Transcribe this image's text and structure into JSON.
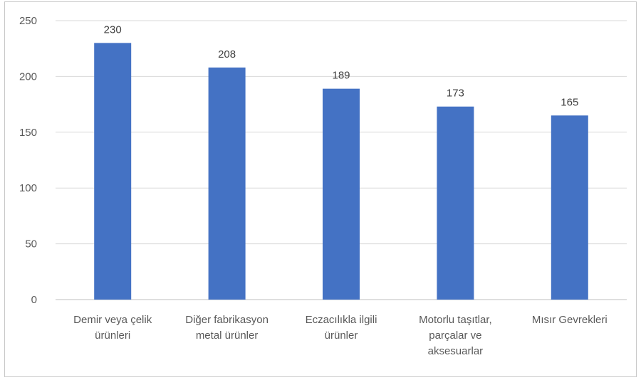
{
  "chart_data": {
    "type": "bar",
    "categories": [
      [
        "Demir veya çelik",
        "ürünleri"
      ],
      [
        "Diğer fabrikasyon",
        "metal ürünler"
      ],
      [
        "Eczacılıkla ilgili",
        "ürünler"
      ],
      [
        "Motorlu taşıtlar,",
        "parçalar ve",
        "aksesuarlar"
      ],
      [
        "Mısır Gevrekleri"
      ]
    ],
    "values": [
      230,
      208,
      189,
      173,
      165
    ],
    "data_labels": [
      "230",
      "208",
      "189",
      "173",
      "165"
    ],
    "title": "",
    "xlabel": "",
    "ylabel": "",
    "ylim": [
      0,
      250
    ],
    "yticks": [
      0,
      50,
      100,
      150,
      200,
      250
    ],
    "grid": true,
    "legend": "none",
    "bar_color": "#4472c4",
    "grid_color": "#d9d9d9",
    "axis_color": "#bfbfbf"
  }
}
